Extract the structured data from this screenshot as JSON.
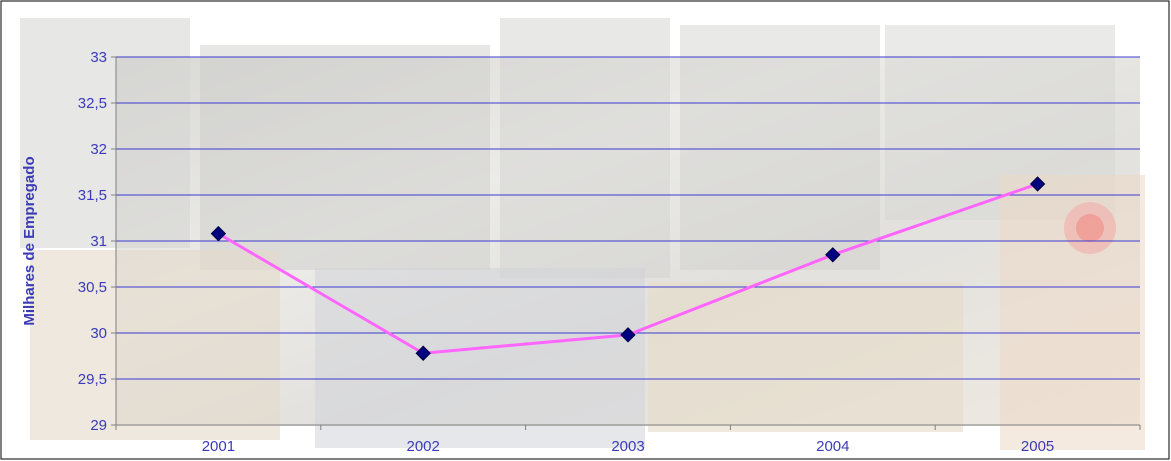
{
  "chart_data": {
    "type": "line",
    "title": "",
    "xlabel": "",
    "ylabel": "Milhares de Empregado",
    "categories": [
      "2001",
      "2002",
      "2003",
      "2004",
      "2005"
    ],
    "series": [
      {
        "values": [
          31.08,
          29.78,
          29.98,
          30.85,
          31.62
        ]
      }
    ],
    "ylim": [
      29,
      33
    ],
    "yticks": [
      29,
      29.5,
      30,
      30.5,
      31,
      31.5,
      32,
      32.5,
      33
    ],
    "ytick_labels": [
      "29",
      "29,5",
      "30",
      "30,5",
      "31",
      "31,5",
      "32",
      "32,5",
      "33"
    ],
    "grid": "horizontal",
    "legend": "none",
    "colors": {
      "gridline": "#3b3bd0",
      "line": "#ff66ff",
      "marker": "#000080",
      "text": "#3b3bb8"
    }
  }
}
